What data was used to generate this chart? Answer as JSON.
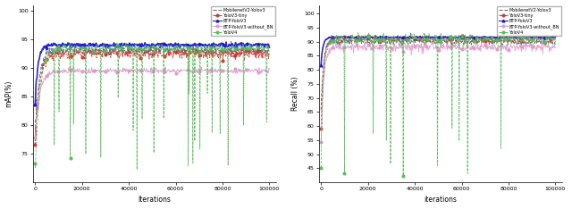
{
  "left": {
    "xlabel": "Iterations",
    "ylabel": "mAP(%)",
    "xlim": [
      -1000,
      103000
    ],
    "ylim": [
      70,
      101
    ],
    "yticks": [
      75,
      80,
      85,
      90,
      95,
      100
    ],
    "xticks": [
      0,
      20000,
      40000,
      60000,
      80000,
      100000
    ],
    "xtick_labels": [
      "0",
      "20000",
      "40000",
      "60000",
      "80000",
      "100000"
    ],
    "legend": [
      "MobilenetV2-Yolov3",
      "YoloV3-tiny",
      "BTP-YoloV3",
      "BTP-YoloV3-without_BN",
      "YoloV4"
    ],
    "colors": [
      "#666666",
      "#cc3333",
      "#1111cc",
      "#dd99cc",
      "#55bb55"
    ],
    "styles": [
      "--",
      "--",
      "-",
      "-",
      "--"
    ],
    "markers": [
      "",
      "o",
      "^",
      "o",
      "o"
    ],
    "linewidths": [
      0.7,
      0.6,
      1.2,
      0.6,
      0.6
    ]
  },
  "right": {
    "xlabel": "iterations",
    "ylabel": "Recall (%)",
    "xlim": [
      -1000,
      103000
    ],
    "ylim": [
      40,
      103
    ],
    "yticks": [
      45,
      50,
      55,
      60,
      65,
      70,
      75,
      80,
      85,
      90,
      95,
      100
    ],
    "xticks": [
      0,
      20000,
      40000,
      60000,
      80000,
      100000
    ],
    "xtick_labels": [
      "0",
      "20000",
      "40000",
      "60000",
      "80000",
      "100000"
    ],
    "legend": [
      "MobilenetV2-Yolov3",
      "YoloV3-tiny",
      "BTP-YoloV3",
      "BTP-YoloV3-without_BN",
      "YoloV4"
    ],
    "colors": [
      "#666666",
      "#cc3333",
      "#1111cc",
      "#dd99cc",
      "#55bb55"
    ],
    "styles": [
      "--",
      "--",
      "-",
      "-",
      "--"
    ],
    "markers": [
      "",
      "o",
      "^",
      "o",
      "o"
    ],
    "linewidths": [
      0.7,
      0.6,
      1.2,
      0.6,
      0.6
    ]
  }
}
